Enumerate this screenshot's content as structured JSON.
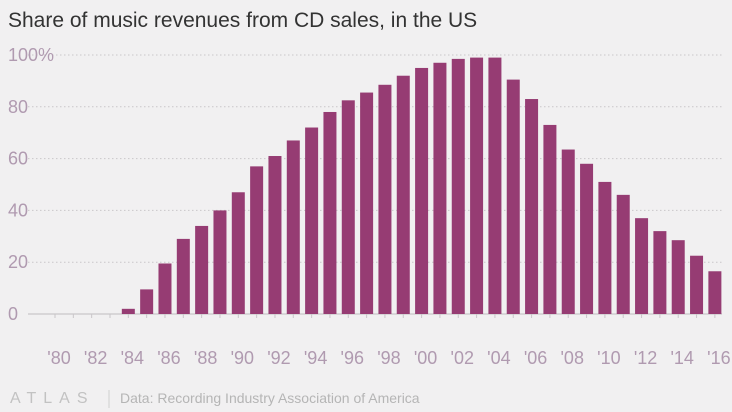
{
  "chart_data": {
    "type": "bar",
    "title": "Share of music revenues from CD sales, in the US",
    "source": "Data: Recording Industry Association of America",
    "logo": "ATLAS",
    "ylim": [
      0,
      100
    ],
    "y_ticks": [
      0,
      20,
      40,
      60,
      80,
      100
    ],
    "y_tick_labels": [
      "0",
      "20",
      "40",
      "60",
      "80",
      "100%"
    ],
    "grid": true,
    "x": [
      1980,
      1981,
      1982,
      1983,
      1984,
      1985,
      1986,
      1987,
      1988,
      1989,
      1990,
      1991,
      1992,
      1993,
      1994,
      1995,
      1996,
      1997,
      1998,
      1999,
      2000,
      2001,
      2002,
      2003,
      2004,
      2005,
      2006,
      2007,
      2008,
      2009,
      2010,
      2011,
      2012,
      2013,
      2014,
      2015,
      2016
    ],
    "x_tick_labels": [
      "'80",
      "'82",
      "'84",
      "'86",
      "'88",
      "'90",
      "'92",
      "'94",
      "'96",
      "'98",
      "'00",
      "'02",
      "'04",
      "'06",
      "'08",
      "'10",
      "'12",
      "'14",
      "'16"
    ],
    "values": [
      0,
      0,
      0,
      0,
      2,
      9.5,
      19.5,
      29,
      34,
      40,
      47,
      57,
      61,
      67,
      72,
      78,
      82.5,
      85.5,
      88.5,
      92,
      95,
      97,
      98.5,
      99,
      99,
      90.5,
      83,
      73,
      63.5,
      58,
      51,
      46,
      37,
      32,
      28.5,
      22.5,
      16.5
    ],
    "bar_color": "#963c73"
  }
}
